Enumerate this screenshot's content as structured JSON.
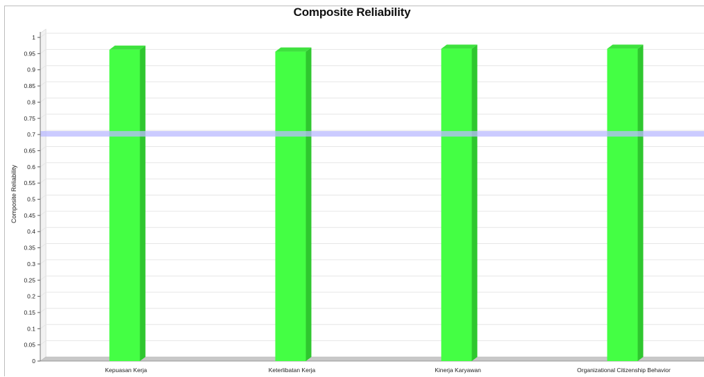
{
  "chart_data": {
    "type": "bar",
    "title": "Composite Reliability",
    "xlabel": "",
    "ylabel": "Composite Reliability",
    "categories": [
      "Kepuasan Kerja",
      "Keterlibatan Kerja",
      "Kinerja Karyawan",
      "Organizational Citizenship Behavior"
    ],
    "values": [
      0.962,
      0.956,
      0.965,
      0.965
    ],
    "ylim": [
      0,
      1
    ],
    "yticks": [
      "0",
      "0.05",
      "0.1",
      "0.15",
      "0.2",
      "0.25",
      "0.3",
      "0.35",
      "0.4",
      "0.45",
      "0.5",
      "0.55",
      "0.6",
      "0.65",
      "0.7",
      "0.75",
      "0.8",
      "0.85",
      "0.9",
      "0.95",
      "1"
    ],
    "reference_line": 0.7,
    "grid": true,
    "legend": "none",
    "colors": {
      "bar": "#44ff44",
      "bar_side": "#2fc72f",
      "bar_top": "#3ee23e",
      "reference_line": "#b9b9ff",
      "floor": "#c8c8c8"
    }
  }
}
